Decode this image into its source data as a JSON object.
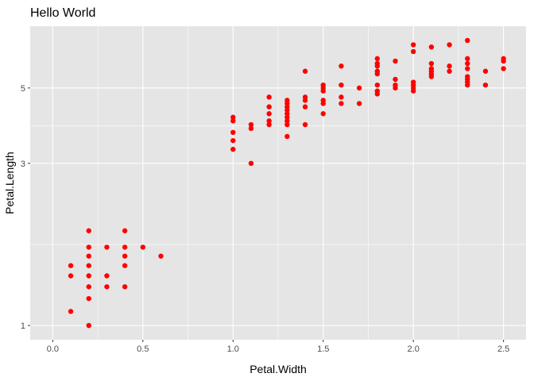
{
  "chart_data": {
    "type": "scatter",
    "title": "Hello World",
    "xlabel": "Petal.Width",
    "ylabel": "Petal.Length",
    "x_scale": "linear",
    "y_scale": "log",
    "xlim": [
      0.0,
      2.5
    ],
    "ylim": [
      1.0,
      6.9
    ],
    "x_ticks": [
      0.0,
      0.5,
      1.0,
      1.5,
      2.0,
      2.5
    ],
    "x_tick_labels": [
      "0.0",
      "0.5",
      "1.0",
      "1.5",
      "2.0",
      "2.5"
    ],
    "y_ticks": [
      1,
      3,
      5
    ],
    "y_tick_labels": [
      "1",
      "3",
      "5"
    ],
    "grid": true,
    "legend": "none",
    "point_color": "#ff0000",
    "panel_background": "#e5e5e5",
    "grid_color": "#ffffff",
    "points": [
      [
        0.1,
        1.1
      ],
      [
        0.1,
        1.4
      ],
      [
        0.1,
        1.5
      ],
      [
        0.2,
        1.0
      ],
      [
        0.2,
        1.2
      ],
      [
        0.2,
        1.3
      ],
      [
        0.2,
        1.4
      ],
      [
        0.2,
        1.5
      ],
      [
        0.2,
        1.6
      ],
      [
        0.2,
        1.7
      ],
      [
        0.2,
        1.9
      ],
      [
        0.3,
        1.3
      ],
      [
        0.3,
        1.4
      ],
      [
        0.3,
        1.7
      ],
      [
        0.4,
        1.3
      ],
      [
        0.4,
        1.5
      ],
      [
        0.4,
        1.6
      ],
      [
        0.4,
        1.7
      ],
      [
        0.4,
        1.9
      ],
      [
        0.5,
        1.7
      ],
      [
        0.6,
        1.6
      ],
      [
        1.0,
        3.3
      ],
      [
        1.0,
        3.5
      ],
      [
        1.0,
        3.7
      ],
      [
        1.0,
        4.0
      ],
      [
        1.0,
        4.1
      ],
      [
        1.1,
        3.0
      ],
      [
        1.1,
        3.8
      ],
      [
        1.1,
        3.9
      ],
      [
        1.2,
        3.9
      ],
      [
        1.2,
        4.0
      ],
      [
        1.2,
        4.2
      ],
      [
        1.2,
        4.4
      ],
      [
        1.2,
        4.7
      ],
      [
        1.3,
        3.6
      ],
      [
        1.3,
        3.9
      ],
      [
        1.3,
        4.0
      ],
      [
        1.3,
        4.1
      ],
      [
        1.3,
        4.2
      ],
      [
        1.3,
        4.3
      ],
      [
        1.3,
        4.4
      ],
      [
        1.3,
        4.5
      ],
      [
        1.3,
        4.6
      ],
      [
        1.4,
        3.9
      ],
      [
        1.4,
        4.4
      ],
      [
        1.4,
        4.6
      ],
      [
        1.4,
        4.7
      ],
      [
        1.4,
        5.6
      ],
      [
        1.5,
        4.2
      ],
      [
        1.5,
        4.5
      ],
      [
        1.5,
        4.6
      ],
      [
        1.5,
        4.9
      ],
      [
        1.5,
        5.0
      ],
      [
        1.5,
        5.1
      ],
      [
        1.6,
        4.5
      ],
      [
        1.6,
        4.7
      ],
      [
        1.6,
        5.1
      ],
      [
        1.6,
        5.8
      ],
      [
        1.7,
        4.5
      ],
      [
        1.7,
        5.0
      ],
      [
        1.8,
        4.8
      ],
      [
        1.8,
        4.9
      ],
      [
        1.8,
        5.1
      ],
      [
        1.8,
        5.5
      ],
      [
        1.8,
        5.6
      ],
      [
        1.8,
        5.8
      ],
      [
        1.8,
        5.9
      ],
      [
        1.8,
        6.1
      ],
      [
        1.9,
        5.0
      ],
      [
        1.9,
        5.1
      ],
      [
        1.9,
        5.3
      ],
      [
        1.9,
        6.0
      ],
      [
        2.0,
        4.9
      ],
      [
        2.0,
        5.0
      ],
      [
        2.0,
        5.1
      ],
      [
        2.0,
        5.2
      ],
      [
        2.0,
        6.4
      ],
      [
        2.0,
        6.7
      ],
      [
        2.1,
        5.4
      ],
      [
        2.1,
        5.5
      ],
      [
        2.1,
        5.6
      ],
      [
        2.1,
        5.7
      ],
      [
        2.1,
        5.9
      ],
      [
        2.1,
        6.6
      ],
      [
        2.2,
        5.6
      ],
      [
        2.2,
        5.8
      ],
      [
        2.2,
        6.7
      ],
      [
        2.3,
        5.1
      ],
      [
        2.3,
        5.2
      ],
      [
        2.3,
        5.3
      ],
      [
        2.3,
        5.4
      ],
      [
        2.3,
        5.7
      ],
      [
        2.3,
        5.9
      ],
      [
        2.3,
        6.1
      ],
      [
        2.3,
        6.9
      ],
      [
        2.4,
        5.1
      ],
      [
        2.4,
        5.6
      ],
      [
        2.5,
        5.7
      ],
      [
        2.5,
        6.0
      ],
      [
        2.5,
        6.1
      ]
    ]
  }
}
